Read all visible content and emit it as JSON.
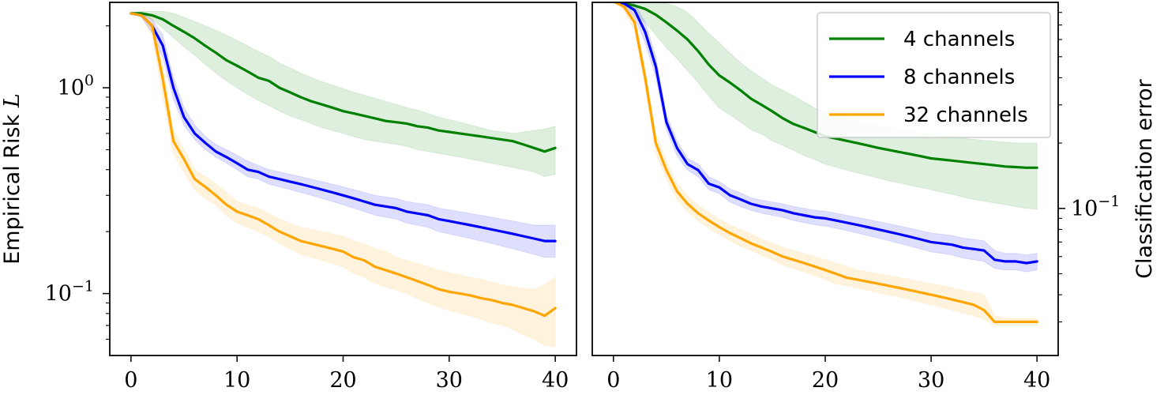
{
  "chart_data": [
    {
      "type": "line",
      "ylabel": "Empirical Risk L",
      "yscale": "log",
      "xlim": [
        -2,
        42
      ],
      "ylim": [
        0.05,
        2.6
      ],
      "xticks": [
        0,
        10,
        20,
        30,
        40
      ],
      "yticks": [
        {
          "value": 1.0,
          "base": "10",
          "exp": "0"
        },
        {
          "value": 0.1,
          "base": "10",
          "exp": "−1"
        }
      ],
      "x": [
        0,
        1,
        2,
        3,
        4,
        5,
        6,
        7,
        8,
        9,
        10,
        11,
        12,
        13,
        14,
        15,
        16,
        17,
        18,
        19,
        20,
        21,
        22,
        23,
        24,
        25,
        26,
        27,
        28,
        29,
        30,
        31,
        32,
        33,
        34,
        35,
        36,
        37,
        38,
        39,
        40
      ],
      "series": [
        {
          "name": "4 channels",
          "color": "#008000",
          "values": [
            2.3,
            2.3,
            2.25,
            2.15,
            2.0,
            1.87,
            1.74,
            1.6,
            1.48,
            1.36,
            1.28,
            1.2,
            1.12,
            1.08,
            1.0,
            0.95,
            0.9,
            0.86,
            0.83,
            0.8,
            0.77,
            0.75,
            0.73,
            0.71,
            0.69,
            0.68,
            0.67,
            0.65,
            0.64,
            0.62,
            0.61,
            0.6,
            0.59,
            0.58,
            0.57,
            0.56,
            0.55,
            0.53,
            0.51,
            0.49,
            0.51
          ],
          "lower": [
            2.3,
            2.28,
            2.15,
            1.95,
            1.75,
            1.58,
            1.44,
            1.3,
            1.18,
            1.08,
            1.0,
            0.93,
            0.87,
            0.82,
            0.77,
            0.73,
            0.7,
            0.67,
            0.64,
            0.62,
            0.6,
            0.58,
            0.56,
            0.55,
            0.54,
            0.53,
            0.52,
            0.5,
            0.49,
            0.48,
            0.47,
            0.46,
            0.45,
            0.44,
            0.43,
            0.42,
            0.41,
            0.4,
            0.39,
            0.37,
            0.38
          ],
          "upper": [
            2.3,
            2.35,
            2.35,
            2.35,
            2.3,
            2.2,
            2.1,
            2.0,
            1.9,
            1.8,
            1.7,
            1.6,
            1.5,
            1.42,
            1.32,
            1.25,
            1.18,
            1.12,
            1.07,
            1.03,
            0.99,
            0.95,
            0.92,
            0.89,
            0.86,
            0.83,
            0.8,
            0.78,
            0.75,
            0.72,
            0.7,
            0.68,
            0.66,
            0.64,
            0.62,
            0.61,
            0.6,
            0.61,
            0.62,
            0.63,
            0.65
          ]
        },
        {
          "name": "8 channels",
          "color": "#0000ff",
          "values": [
            2.3,
            2.25,
            2.0,
            1.6,
            1.0,
            0.72,
            0.6,
            0.54,
            0.49,
            0.46,
            0.43,
            0.4,
            0.39,
            0.37,
            0.36,
            0.35,
            0.34,
            0.33,
            0.32,
            0.31,
            0.3,
            0.29,
            0.28,
            0.27,
            0.265,
            0.26,
            0.25,
            0.245,
            0.24,
            0.23,
            0.225,
            0.22,
            0.215,
            0.21,
            0.205,
            0.2,
            0.195,
            0.19,
            0.185,
            0.18,
            0.18
          ],
          "lower": [
            2.3,
            2.2,
            1.85,
            1.4,
            0.88,
            0.66,
            0.56,
            0.5,
            0.46,
            0.43,
            0.4,
            0.37,
            0.36,
            0.34,
            0.33,
            0.32,
            0.31,
            0.3,
            0.29,
            0.28,
            0.27,
            0.26,
            0.25,
            0.24,
            0.235,
            0.23,
            0.22,
            0.215,
            0.21,
            0.2,
            0.195,
            0.19,
            0.185,
            0.18,
            0.175,
            0.17,
            0.165,
            0.16,
            0.155,
            0.15,
            0.15
          ],
          "upper": [
            2.3,
            2.3,
            2.15,
            1.8,
            1.12,
            0.8,
            0.66,
            0.58,
            0.53,
            0.5,
            0.47,
            0.44,
            0.42,
            0.4,
            0.39,
            0.38,
            0.37,
            0.36,
            0.35,
            0.34,
            0.33,
            0.32,
            0.31,
            0.3,
            0.295,
            0.29,
            0.28,
            0.275,
            0.27,
            0.26,
            0.255,
            0.25,
            0.245,
            0.24,
            0.235,
            0.23,
            0.225,
            0.22,
            0.215,
            0.215,
            0.215
          ]
        },
        {
          "name": "32 channels",
          "color": "#ffa500",
          "values": [
            2.3,
            2.25,
            2.0,
            1.1,
            0.55,
            0.45,
            0.36,
            0.33,
            0.3,
            0.27,
            0.25,
            0.24,
            0.23,
            0.215,
            0.2,
            0.19,
            0.18,
            0.175,
            0.17,
            0.165,
            0.16,
            0.15,
            0.145,
            0.135,
            0.13,
            0.125,
            0.12,
            0.115,
            0.11,
            0.105,
            0.102,
            0.1,
            0.098,
            0.095,
            0.093,
            0.09,
            0.088,
            0.085,
            0.082,
            0.078,
            0.085
          ],
          "lower": [
            2.3,
            2.2,
            1.8,
            0.9,
            0.48,
            0.39,
            0.32,
            0.29,
            0.27,
            0.24,
            0.22,
            0.21,
            0.2,
            0.19,
            0.175,
            0.165,
            0.155,
            0.15,
            0.145,
            0.14,
            0.135,
            0.125,
            0.12,
            0.112,
            0.108,
            0.104,
            0.1,
            0.095,
            0.09,
            0.086,
            0.083,
            0.08,
            0.078,
            0.075,
            0.072,
            0.07,
            0.067,
            0.063,
            0.06,
            0.056,
            0.055
          ],
          "upper": [
            2.3,
            2.3,
            2.2,
            1.3,
            0.62,
            0.5,
            0.4,
            0.37,
            0.34,
            0.31,
            0.28,
            0.27,
            0.26,
            0.245,
            0.23,
            0.22,
            0.21,
            0.205,
            0.2,
            0.195,
            0.19,
            0.18,
            0.175,
            0.165,
            0.16,
            0.15,
            0.145,
            0.14,
            0.135,
            0.13,
            0.126,
            0.123,
            0.12,
            0.117,
            0.114,
            0.11,
            0.108,
            0.106,
            0.105,
            0.11,
            0.12
          ]
        }
      ]
    },
    {
      "type": "line",
      "ylabel": "Classification error",
      "yscale": "log",
      "yaxis_position": "right",
      "xlim": [
        -2,
        42
      ],
      "ylim": [
        0.021,
        0.89
      ],
      "xticks": [
        0,
        10,
        20,
        30,
        40
      ],
      "yticks": [
        {
          "value": 0.1,
          "base": "10",
          "exp": "−1"
        }
      ],
      "legend": {
        "position": "top-right",
        "entries": [
          "4 channels",
          "8 channels",
          "32 channels"
        ]
      },
      "x": [
        0,
        1,
        2,
        3,
        4,
        5,
        6,
        7,
        8,
        9,
        10,
        11,
        12,
        13,
        14,
        15,
        16,
        17,
        18,
        19,
        20,
        21,
        22,
        23,
        24,
        25,
        26,
        27,
        28,
        29,
        30,
        31,
        32,
        33,
        34,
        35,
        36,
        37,
        38,
        39,
        40
      ],
      "series": [
        {
          "name": "4 channels",
          "color": "#008000",
          "values": [
            0.9,
            0.88,
            0.86,
            0.83,
            0.78,
            0.72,
            0.66,
            0.6,
            0.53,
            0.46,
            0.41,
            0.38,
            0.35,
            0.32,
            0.3,
            0.28,
            0.26,
            0.245,
            0.235,
            0.225,
            0.215,
            0.21,
            0.205,
            0.2,
            0.195,
            0.19,
            0.186,
            0.182,
            0.178,
            0.174,
            0.17,
            0.168,
            0.166,
            0.164,
            0.162,
            0.16,
            0.158,
            0.156,
            0.155,
            0.154,
            0.154
          ],
          "lower": [
            0.9,
            0.86,
            0.8,
            0.72,
            0.63,
            0.55,
            0.49,
            0.43,
            0.38,
            0.33,
            0.29,
            0.27,
            0.25,
            0.23,
            0.22,
            0.205,
            0.195,
            0.185,
            0.175,
            0.168,
            0.16,
            0.155,
            0.15,
            0.146,
            0.142,
            0.138,
            0.134,
            0.131,
            0.128,
            0.125,
            0.122,
            0.119,
            0.116,
            0.113,
            0.11,
            0.108,
            0.106,
            0.104,
            0.102,
            0.1,
            0.099
          ],
          "upper": [
            0.9,
            0.9,
            0.92,
            0.92,
            0.9,
            0.88,
            0.85,
            0.8,
            0.72,
            0.64,
            0.58,
            0.52,
            0.47,
            0.43,
            0.4,
            0.37,
            0.35,
            0.33,
            0.31,
            0.29,
            0.28,
            0.27,
            0.26,
            0.25,
            0.245,
            0.24,
            0.235,
            0.23,
            0.226,
            0.222,
            0.218,
            0.215,
            0.212,
            0.21,
            0.208,
            0.206,
            0.204,
            0.202,
            0.2,
            0.2,
            0.2
          ]
        },
        {
          "name": "8 channels",
          "color": "#0000ff",
          "values": [
            0.9,
            0.88,
            0.82,
            0.65,
            0.45,
            0.25,
            0.19,
            0.16,
            0.15,
            0.13,
            0.125,
            0.115,
            0.11,
            0.105,
            0.102,
            0.1,
            0.098,
            0.095,
            0.093,
            0.091,
            0.09,
            0.088,
            0.086,
            0.084,
            0.082,
            0.08,
            0.078,
            0.076,
            0.074,
            0.072,
            0.07,
            0.069,
            0.068,
            0.066,
            0.065,
            0.064,
            0.058,
            0.057,
            0.057,
            0.056,
            0.057
          ],
          "lower": [
            0.9,
            0.85,
            0.76,
            0.58,
            0.4,
            0.23,
            0.175,
            0.15,
            0.14,
            0.122,
            0.117,
            0.107,
            0.102,
            0.098,
            0.095,
            0.093,
            0.091,
            0.088,
            0.086,
            0.084,
            0.083,
            0.081,
            0.079,
            0.077,
            0.075,
            0.073,
            0.071,
            0.069,
            0.067,
            0.065,
            0.063,
            0.062,
            0.061,
            0.059,
            0.058,
            0.057,
            0.053,
            0.052,
            0.052,
            0.051,
            0.052
          ],
          "upper": [
            0.9,
            0.9,
            0.88,
            0.72,
            0.5,
            0.27,
            0.205,
            0.17,
            0.16,
            0.14,
            0.133,
            0.123,
            0.118,
            0.112,
            0.109,
            0.107,
            0.105,
            0.102,
            0.1,
            0.098,
            0.097,
            0.095,
            0.093,
            0.091,
            0.089,
            0.087,
            0.085,
            0.083,
            0.081,
            0.079,
            0.077,
            0.076,
            0.075,
            0.073,
            0.072,
            0.071,
            0.064,
            0.062,
            0.062,
            0.061,
            0.062
          ]
        },
        {
          "name": "32 channels",
          "color": "#ffa500",
          "values": [
            0.9,
            0.85,
            0.72,
            0.4,
            0.2,
            0.15,
            0.12,
            0.105,
            0.095,
            0.088,
            0.082,
            0.077,
            0.073,
            0.069,
            0.066,
            0.063,
            0.06,
            0.058,
            0.056,
            0.054,
            0.052,
            0.05,
            0.048,
            0.047,
            0.046,
            0.045,
            0.044,
            0.043,
            0.042,
            0.041,
            0.04,
            0.039,
            0.038,
            0.037,
            0.036,
            0.034,
            0.03,
            0.03,
            0.03,
            0.03,
            0.03
          ],
          "lower": [
            0.9,
            0.82,
            0.66,
            0.36,
            0.18,
            0.137,
            0.11,
            0.097,
            0.088,
            0.081,
            0.076,
            0.071,
            0.067,
            0.064,
            0.061,
            0.058,
            0.055,
            0.053,
            0.051,
            0.049,
            0.047,
            0.045,
            0.044,
            0.043,
            0.042,
            0.041,
            0.04,
            0.039,
            0.038,
            0.037,
            0.036,
            0.035,
            0.034,
            0.033,
            0.032,
            0.031,
            0.029,
            0.029,
            0.029,
            0.029,
            0.029
          ],
          "upper": [
            0.9,
            0.88,
            0.78,
            0.44,
            0.22,
            0.165,
            0.13,
            0.114,
            0.103,
            0.096,
            0.089,
            0.084,
            0.08,
            0.076,
            0.072,
            0.069,
            0.066,
            0.064,
            0.062,
            0.06,
            0.058,
            0.056,
            0.054,
            0.052,
            0.051,
            0.05,
            0.049,
            0.048,
            0.047,
            0.046,
            0.045,
            0.044,
            0.043,
            0.042,
            0.041,
            0.04,
            0.032,
            0.031,
            0.031,
            0.031,
            0.031
          ]
        }
      ]
    }
  ]
}
